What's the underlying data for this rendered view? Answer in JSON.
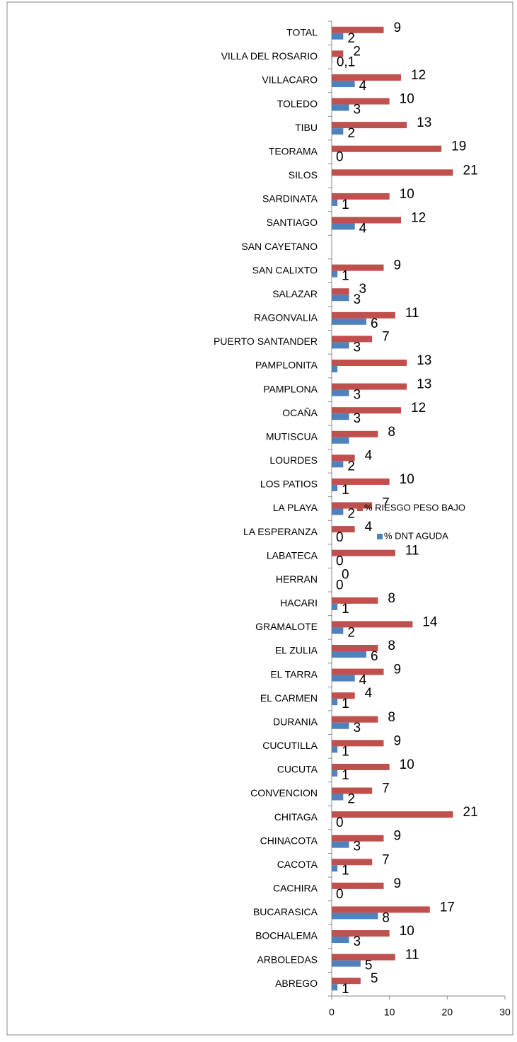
{
  "chart_data": {
    "type": "hbar",
    "categories": [
      "TOTAL",
      "VILLA DEL ROSARIO",
      "VILLACARO",
      "TOLEDO",
      "TIBU",
      "TEORAMA",
      "SILOS",
      "SARDINATA",
      "SANTIAGO",
      "SAN CAYETANO",
      "SAN CALIXTO",
      "SALAZAR",
      "RAGONVALIA",
      "PUERTO SANTANDER",
      "PAMPLONITA",
      "PAMPLONA",
      "OCAÑA",
      "MUTISCUA",
      "LOURDES",
      "LOS PATIOS",
      "LA PLAYA",
      "LA ESPERANZA",
      "LABATECA",
      "HERRAN",
      "HACARI",
      "GRAMALOTE",
      "EL ZULIA",
      "EL TARRA",
      "EL CARMEN",
      "DURANIA",
      "CUCUTILLA",
      "CUCUTA",
      "CONVENCION",
      "CHITAGA",
      "CHINACOTA",
      "CACOTA",
      "CACHIRA",
      "BUCARASICA",
      "BOCHALEMA",
      "ARBOLEDAS",
      "ABREGO"
    ],
    "series": [
      {
        "name": "% RIESGO PESO BAJO",
        "color": "#c0504d",
        "values": [
          9,
          2,
          12,
          10,
          13,
          19,
          21,
          10,
          12,
          null,
          9,
          3,
          11,
          7,
          13,
          13,
          12,
          8,
          4,
          10,
          7,
          4,
          11,
          0,
          8,
          14,
          8,
          9,
          4,
          8,
          9,
          10,
          7,
          21,
          9,
          7,
          9,
          17,
          10,
          11,
          5
        ]
      },
      {
        "name": "% DNT AGUDA",
        "color": "#4f81bd",
        "values": [
          2,
          0.1,
          4,
          3,
          2,
          0,
          null,
          1,
          4,
          null,
          1,
          3,
          6,
          3,
          1,
          3,
          3,
          3,
          2,
          1,
          2,
          0,
          0,
          0,
          1,
          2,
          6,
          4,
          1,
          3,
          1,
          1,
          2,
          0,
          3,
          1,
          0,
          8,
          3,
          5,
          1
        ],
        "value_labels": [
          "2",
          "0,1",
          "4",
          "3",
          "2",
          "0",
          null,
          "1",
          "4",
          null,
          "1",
          "3",
          "6",
          "3",
          null,
          "3",
          "3",
          null,
          "2",
          "1",
          "2",
          "0",
          "0",
          "0",
          "1",
          "2",
          "6",
          "4",
          "1",
          "3",
          "1",
          "1",
          "2",
          "0",
          "3",
          "1",
          "0",
          "8",
          "3",
          "5",
          "1"
        ]
      }
    ],
    "xlim": [
      0,
      30
    ],
    "xticks": [
      0,
      10,
      20,
      30
    ],
    "legend": "right"
  }
}
